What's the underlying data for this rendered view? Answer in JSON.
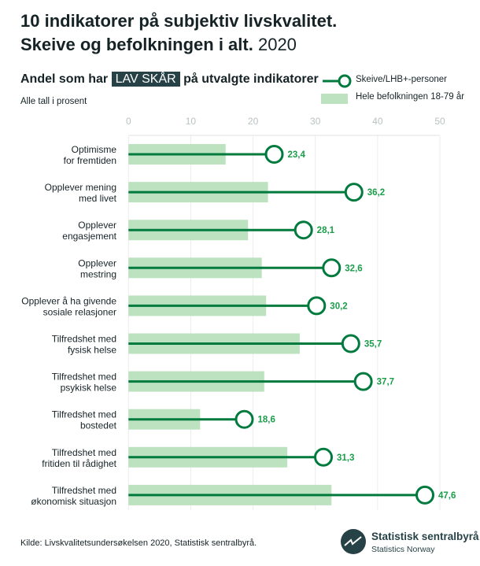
{
  "title_line1": "10 indikatorer på subjektiv livskvalitet.",
  "title_line2": "Skeive og befolkningen i alt.",
  "title_year": "2020",
  "subtitle_pre": "Andel som har",
  "subtitle_badge": "LAV SKÅR",
  "subtitle_post": "på utvalgte indikatorer",
  "note": "Alle tall i prosent",
  "source": "Kilde: Livskvalitetsundersøkelsen 2020, Statistisk sentralbyrå.",
  "logo": {
    "name": "Statistisk sentralbyrå",
    "sub": "Statistics Norway"
  },
  "colors": {
    "line": "#007a3d",
    "bar": "#bde2c0",
    "label": "#1a9e4a",
    "dark": "#274247"
  },
  "chart_data": {
    "type": "bar+dot",
    "orientation": "horizontal",
    "xlim": [
      0,
      50
    ],
    "xticks": [
      "0",
      "10",
      "20",
      "30",
      "40",
      "50"
    ],
    "grid": true,
    "legend_position": "top-right",
    "categories": [
      [
        "Optimisme",
        "for fremtiden"
      ],
      [
        "Opplever mening",
        "med livet"
      ],
      [
        "Opplever",
        "engasjement"
      ],
      [
        "Opplever",
        "mestring"
      ],
      [
        "Opplever å ha givende",
        "sosiale relasjoner"
      ],
      [
        "Tilfredshet med",
        "fysisk helse"
      ],
      [
        "Tilfredshet med",
        "psykisk helse"
      ],
      [
        "Tilfredshet med",
        "bostedet"
      ],
      [
        "Tilfredshet med",
        "fritiden til rådighet"
      ],
      [
        "Tilfredshet med",
        "økonomisk situasjon"
      ]
    ],
    "series": [
      {
        "name": "Skeive/LHB+-personer",
        "type": "dot",
        "values": [
          23.4,
          36.2,
          28.1,
          32.6,
          30.2,
          35.7,
          37.7,
          18.6,
          31.3,
          47.6
        ],
        "labels": [
          "23,4",
          "36,2",
          "28,1",
          "32,6",
          "30,2",
          "35,7",
          "37,7",
          "18,6",
          "31,3",
          "47,6"
        ]
      },
      {
        "name": "Hele befolkningen 18-79 år",
        "type": "bar",
        "values": [
          15.6,
          22.4,
          19.2,
          21.4,
          22.1,
          27.5,
          21.8,
          11.5,
          25.5,
          32.6
        ]
      }
    ]
  }
}
